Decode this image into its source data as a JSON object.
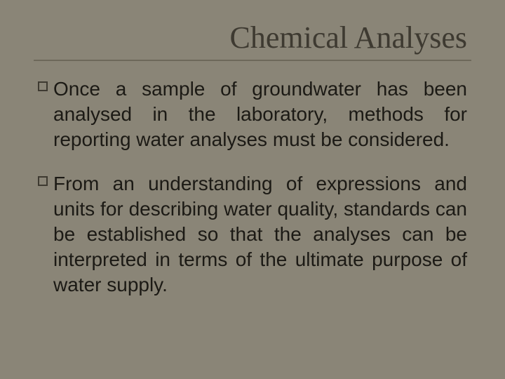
{
  "colors": {
    "background": "#8a8577",
    "title": "#3e3a31",
    "underline": "#6d685a",
    "body_text": "#1c1a15",
    "bullet_border": "#3e3a31"
  },
  "typography": {
    "title_fontsize": 44,
    "title_weight": "400",
    "body_fontsize": 28,
    "body_weight": "400"
  },
  "layout": {
    "bullet_marker_size": 14
  },
  "title": "Chemical Analyses",
  "bullets": [
    "Once a sample of groundwater has been analysed in the laboratory, methods for reporting water analyses must be considered.",
    "From an understanding of expressions and units for describing water quality, standards can be established so that the analyses can be interpreted in terms of the ultimate purpose of water supply."
  ]
}
